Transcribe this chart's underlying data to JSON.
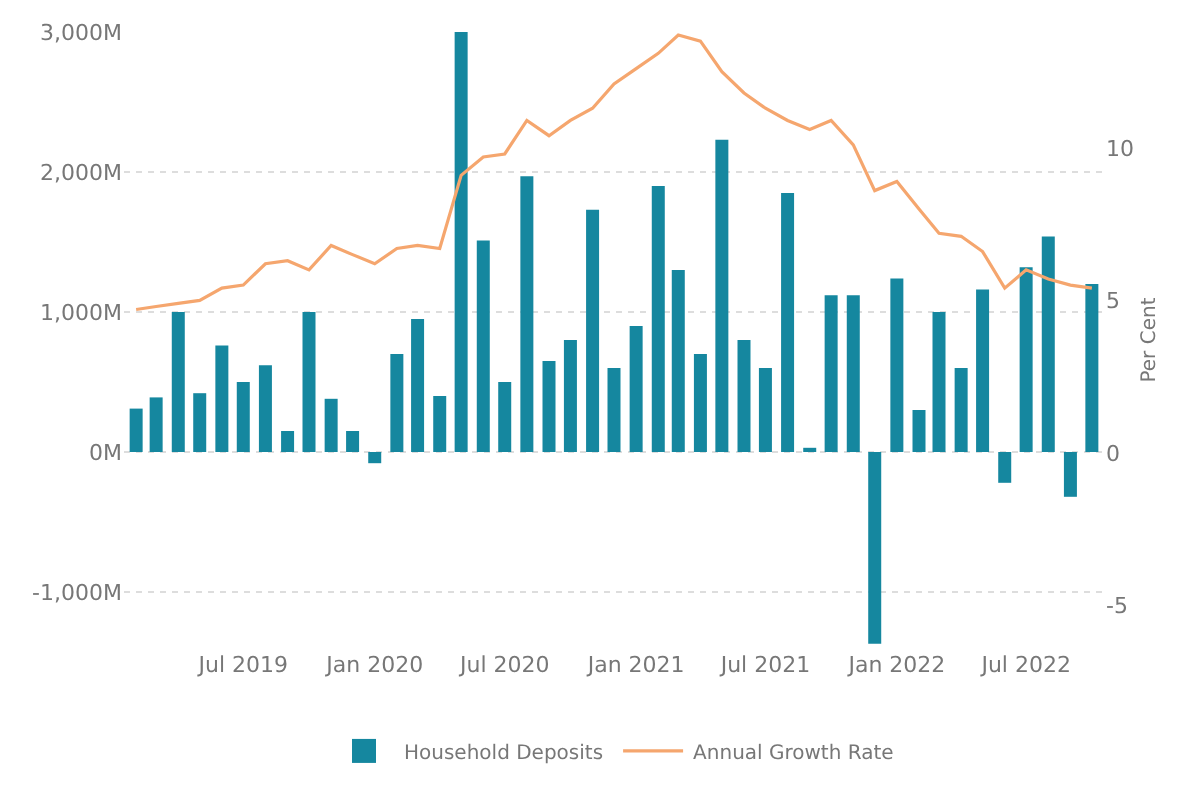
{
  "chart_data": {
    "type": "bar",
    "x": [
      "2019-02",
      "2019-03",
      "2019-04",
      "2019-05",
      "2019-06",
      "2019-07",
      "2019-08",
      "2019-09",
      "2019-10",
      "2019-11",
      "2019-12",
      "2020-01",
      "2020-02",
      "2020-03",
      "2020-04",
      "2020-05",
      "2020-06",
      "2020-07",
      "2020-08",
      "2020-09",
      "2020-10",
      "2020-11",
      "2020-12",
      "2021-01",
      "2021-02",
      "2021-03",
      "2021-04",
      "2021-05",
      "2021-06",
      "2021-07",
      "2021-08",
      "2021-09",
      "2021-10",
      "2021-11",
      "2021-12",
      "2022-01",
      "2022-02",
      "2022-03",
      "2022-04",
      "2022-05",
      "2022-06",
      "2022-07",
      "2022-08",
      "2022-09",
      "2022-10"
    ],
    "series": [
      {
        "name": "Household Deposits",
        "color": "#15879f",
        "values": [
          310,
          390,
          1000,
          420,
          760,
          500,
          620,
          150,
          1000,
          380,
          150,
          -80,
          700,
          950,
          400,
          3000,
          1510,
          500,
          1970,
          650,
          800,
          1730,
          600,
          900,
          1900,
          1300,
          700,
          2230,
          800,
          600,
          1850,
          30,
          1120,
          1120,
          -1370,
          1240,
          300,
          1000,
          600,
          1160,
          -220,
          1320,
          1540,
          -320,
          1200
        ]
      },
      {
        "name": "Annual Growth Rate",
        "type": "line",
        "axis": "y2",
        "color": "#f5a66e",
        "values": [
          4.7,
          4.8,
          4.9,
          5.0,
          5.4,
          5.5,
          6.2,
          6.3,
          6.0,
          6.8,
          6.5,
          6.2,
          6.7,
          6.8,
          6.7,
          9.1,
          9.7,
          9.8,
          10.9,
          10.4,
          10.9,
          11.3,
          12.1,
          12.6,
          13.1,
          13.7,
          13.5,
          12.5,
          11.8,
          11.3,
          10.9,
          10.6,
          10.9,
          10.1,
          8.6,
          8.9,
          8.0,
          7.2,
          7.1,
          6.6,
          5.4,
          6.0,
          5.7,
          5.5,
          5.4
        ]
      }
    ],
    "y2label": "Per Cent",
    "xlim": [
      "2019-01-15",
      "2022-10-18"
    ],
    "xticks": [
      {
        "value": "2019-07",
        "label": "Jul 2019"
      },
      {
        "value": "2020-01",
        "label": "Jan 2020"
      },
      {
        "value": "2020-07",
        "label": "Jul 2020"
      },
      {
        "value": "2021-01",
        "label": "Jan 2021"
      },
      {
        "value": "2021-07",
        "label": "Jul 2021"
      },
      {
        "value": "2022-01",
        "label": "Jan 2022"
      },
      {
        "value": "2022-07",
        "label": "Jul 2022"
      }
    ],
    "ylim": [
      -1400,
      3000
    ],
    "yticks": [
      {
        "value": -1000,
        "label": "-1,000M"
      },
      {
        "value": 0,
        "label": "0M"
      },
      {
        "value": 1000,
        "label": "1,000M"
      },
      {
        "value": 2000,
        "label": "2,000M"
      },
      {
        "value": 3000,
        "label": "3,000M"
      }
    ],
    "y2lim": [
      -6.4,
      13.8
    ],
    "y2ticks": [
      -5,
      0,
      5,
      10
    ],
    "grid": "y",
    "legend": "bottom",
    "marker": "none",
    "line_style": "solid"
  }
}
